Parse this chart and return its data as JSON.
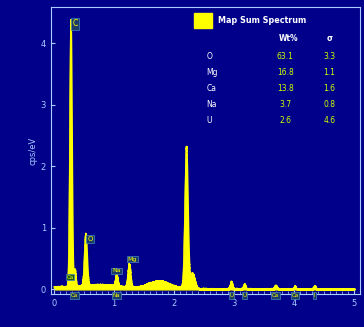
{
  "background_color": "#00008B",
  "plot_bg_color": "#00008B",
  "line_color": "#FFFF00",
  "axis_color": "#AACCFF",
  "tick_color": "#AACCFF",
  "ylabel": "cps/eV",
  "xlim": [
    -0.05,
    5.1
  ],
  "ylim": [
    -0.08,
    4.6
  ],
  "yticks": [
    0,
    1,
    2,
    3,
    4
  ],
  "xticks": [
    0,
    1,
    2,
    3,
    4,
    5
  ],
  "legend_bg": "#2255AA",
  "legend_square_color": "#FFFF00",
  "table_elements": [
    "O",
    "Mg",
    "Ca",
    "Na",
    "U"
  ],
  "table_wt": [
    "63.1",
    "16.8",
    "13.8",
    "3.7",
    "2.6"
  ],
  "table_sigma": [
    "3.3",
    "1.1",
    "1.6",
    "0.8",
    "4.6"
  ],
  "table_wt_color": "#CCFF00",
  "table_sigma_color": "#CCFF00",
  "table_element_color": "#FFFFFF",
  "table_header_color": "#FFFFFF",
  "label_box_color": "#1a3a6a",
  "label_text_color": "#FFFF00",
  "label_box_edge": "#4488BB"
}
